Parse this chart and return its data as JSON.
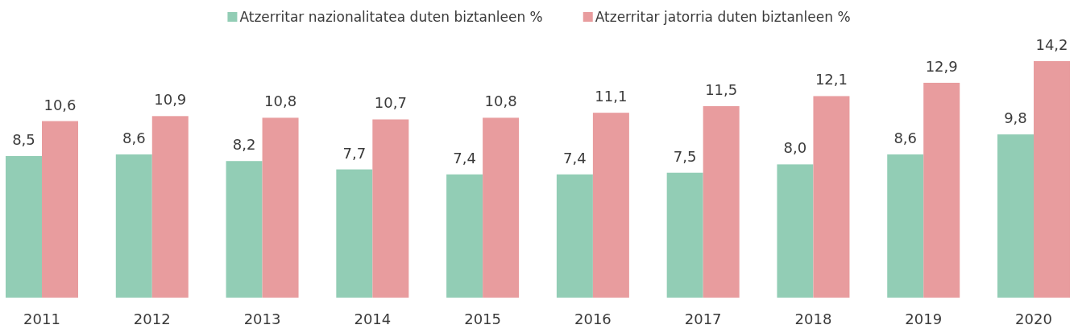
{
  "chart_data": {
    "type": "bar",
    "categories": [
      "2011",
      "2012",
      "2013",
      "2014",
      "2015",
      "2016",
      "2017",
      "2018",
      "2019",
      "2020"
    ],
    "series": [
      {
        "name": "Atzerritar nazionalitatea duten biztanleen %",
        "color": "#92cdb5",
        "values": [
          8.5,
          8.6,
          8.2,
          7.7,
          7.4,
          7.4,
          7.5,
          8.0,
          8.6,
          9.8
        ],
        "value_labels": [
          "8,5",
          "8,6",
          "8,2",
          "7,7",
          "7,4",
          "7,4",
          "7,5",
          "8,0",
          "8,6",
          "9,8"
        ]
      },
      {
        "name": "Atzerritar jatorria duten biztanleen %",
        "color": "#e89c9e",
        "values": [
          10.6,
          10.9,
          10.8,
          10.7,
          10.8,
          11.1,
          11.5,
          12.1,
          12.9,
          14.2
        ],
        "value_labels": [
          "10,6",
          "10,9",
          "10,8",
          "10,7",
          "10,8",
          "11,1",
          "11,5",
          "12,1",
          "12,9",
          "14,2"
        ]
      }
    ],
    "legend": "top"
  }
}
